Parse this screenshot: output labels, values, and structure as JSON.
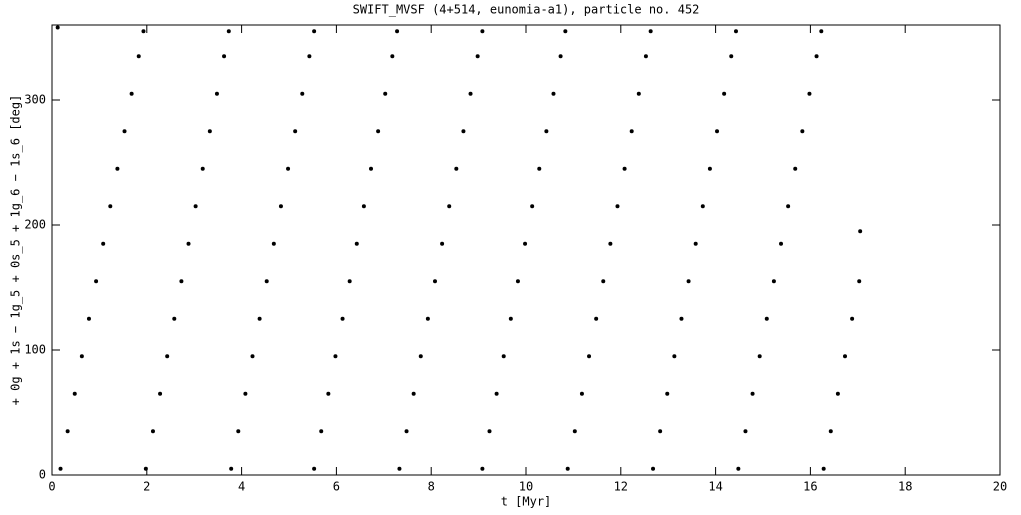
{
  "chart_data": {
    "type": "scatter",
    "title": "SWIFT_MVSF (4+514, eunomia-a1), particle no. 452",
    "xlabel": "t [Myr]",
    "ylabel": "+ 0g + 1s − 1g_5 + 0s_5 + 1g_6 − 1s_6 [deg]",
    "color": "#000000",
    "x": [
      0.12,
      0.18,
      0.33,
      0.48,
      0.63,
      0.78,
      0.93,
      1.08,
      1.23,
      1.38,
      1.53,
      1.68,
      1.83,
      1.93,
      1.98,
      2.13,
      2.28,
      2.43,
      2.58,
      2.73,
      2.88,
      3.03,
      3.18,
      3.33,
      3.48,
      3.63,
      3.73,
      3.78,
      3.93,
      4.08,
      4.23,
      4.38,
      4.53,
      4.68,
      4.83,
      4.98,
      5.13,
      5.28,
      5.43,
      5.53,
      5.53,
      5.68,
      5.83,
      5.98,
      6.13,
      6.28,
      6.43,
      6.58,
      6.73,
      6.88,
      7.03,
      7.18,
      7.28,
      7.33,
      7.48,
      7.63,
      7.78,
      7.93,
      8.08,
      8.23,
      8.38,
      8.53,
      8.68,
      8.83,
      8.98,
      9.08,
      9.08,
      9.23,
      9.38,
      9.53,
      9.68,
      9.83,
      9.98,
      10.13,
      10.28,
      10.43,
      10.58,
      10.73,
      10.83,
      10.88,
      11.03,
      11.18,
      11.33,
      11.48,
      11.63,
      11.78,
      11.93,
      12.08,
      12.23,
      12.38,
      12.53,
      12.63,
      12.68,
      12.83,
      12.98,
      13.13,
      13.28,
      13.43,
      13.58,
      13.73,
      13.88,
      14.03,
      14.18,
      14.33,
      14.43,
      14.48,
      14.63,
      14.78,
      14.93,
      15.08,
      15.23,
      15.38,
      15.53,
      15.68,
      15.83,
      15.98,
      16.13,
      16.23,
      16.28,
      16.43,
      16.58,
      16.73,
      16.88,
      17.03,
      17.05
    ],
    "values": [
      358,
      5,
      35,
      65,
      95,
      125,
      155,
      185,
      215,
      245,
      275,
      305,
      335,
      355,
      5,
      35,
      65,
      95,
      125,
      155,
      185,
      215,
      245,
      275,
      305,
      335,
      355,
      5,
      35,
      65,
      95,
      125,
      155,
      185,
      215,
      245,
      275,
      305,
      335,
      355,
      5,
      35,
      65,
      95,
      125,
      155,
      185,
      215,
      245,
      275,
      305,
      335,
      355,
      5,
      35,
      65,
      95,
      125,
      155,
      185,
      215,
      245,
      275,
      305,
      335,
      355,
      5,
      35,
      65,
      95,
      125,
      155,
      185,
      215,
      245,
      275,
      305,
      335,
      355,
      5,
      35,
      65,
      95,
      125,
      155,
      185,
      215,
      245,
      275,
      305,
      335,
      355,
      5,
      35,
      65,
      95,
      125,
      155,
      185,
      215,
      245,
      275,
      305,
      335,
      355,
      5,
      35,
      65,
      95,
      125,
      155,
      185,
      215,
      245,
      275,
      305,
      335,
      355,
      5,
      35,
      65,
      95,
      125,
      155,
      195
    ],
    "xlim": [
      0,
      20
    ],
    "xticks": [
      0,
      2,
      4,
      6,
      8,
      10,
      12,
      14,
      16,
      18,
      20
    ],
    "ylim": [
      0,
      360
    ],
    "yticks": [
      0,
      100,
      200,
      300
    ]
  }
}
